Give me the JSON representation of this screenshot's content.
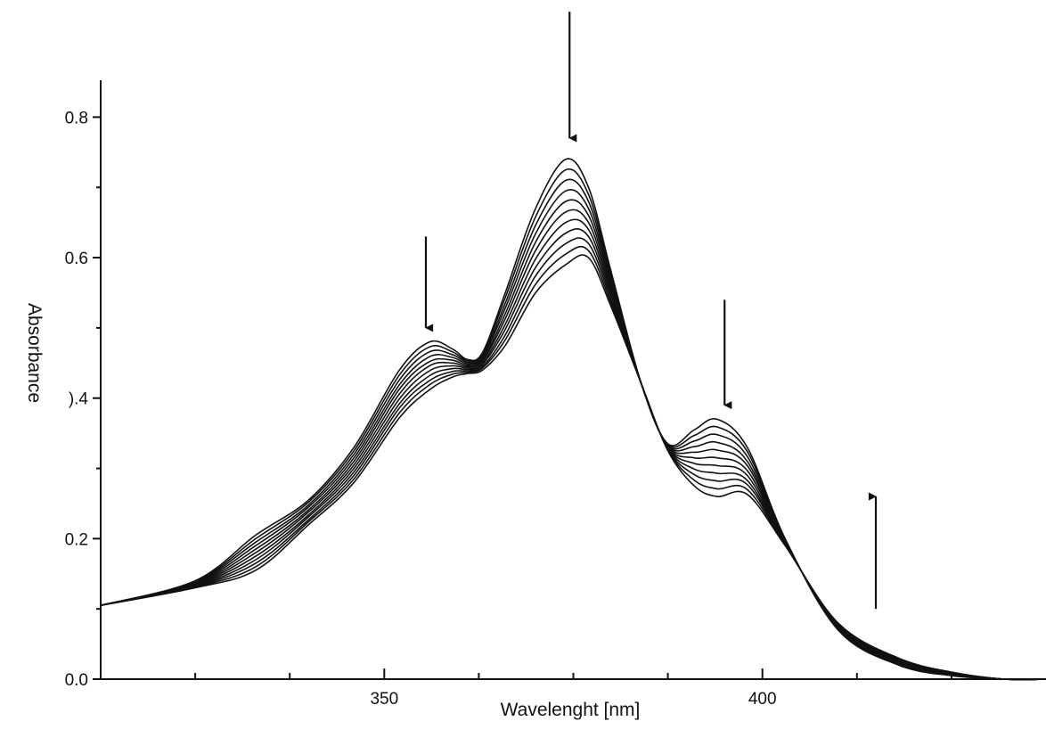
{
  "chart_data": {
    "type": "line",
    "title": "",
    "xlabel": "Wavelenght [nm]",
    "ylabel": "Absorbance",
    "xlim": [
      312.5,
      437.5
    ],
    "ylim": [
      0.0,
      0.85
    ],
    "grid": false,
    "legend": "none",
    "x_ticks": [
      {
        "value": 350,
        "label": "350"
      },
      {
        "value": 400,
        "label": "400"
      }
    ],
    "x_minor_ticks": [
      325,
      337.5,
      362.5,
      375,
      387.5,
      412.5,
      425
    ],
    "y_ticks": [
      {
        "value": 0.0,
        "label": "0.0"
      },
      {
        "value": 0.2,
        "label": "0.2"
      },
      {
        "value": 0.4,
        "label": ").4"
      },
      {
        "value": 0.6,
        "label": "0.6"
      },
      {
        "value": 0.8,
        "label": "0.8"
      }
    ],
    "y_minor_ticks": [
      0.1,
      0.3,
      0.5,
      0.7
    ],
    "x": [
      312.5,
      325,
      333,
      340,
      346,
      352,
      356,
      359,
      361,
      363,
      366,
      370,
      374,
      377,
      380,
      384,
      387.5,
      391,
      394,
      398,
      403,
      410,
      418,
      425,
      432,
      437.5
    ],
    "series": [
      {
        "values": [
          0.105,
          0.14,
          0.205,
          0.255,
          0.33,
          0.44,
          0.48,
          0.47,
          0.455,
          0.465,
          0.55,
          0.67,
          0.74,
          0.7,
          0.58,
          0.42,
          0.335,
          0.355,
          0.37,
          0.33,
          0.2,
          0.07,
          0.02,
          0.005,
          0.0,
          0.0
        ]
      },
      {
        "values": [
          0.105,
          0.139,
          0.2,
          0.252,
          0.325,
          0.433,
          0.473,
          0.466,
          0.453,
          0.463,
          0.543,
          0.658,
          0.725,
          0.69,
          0.575,
          0.42,
          0.334,
          0.347,
          0.359,
          0.324,
          0.199,
          0.071,
          0.021,
          0.006,
          0.0,
          0.0
        ]
      },
      {
        "values": [
          0.105,
          0.138,
          0.195,
          0.248,
          0.32,
          0.426,
          0.466,
          0.462,
          0.451,
          0.46,
          0.535,
          0.646,
          0.71,
          0.68,
          0.57,
          0.42,
          0.333,
          0.339,
          0.348,
          0.317,
          0.198,
          0.072,
          0.022,
          0.006,
          0.0,
          0.0
        ]
      },
      {
        "values": [
          0.105,
          0.137,
          0.19,
          0.245,
          0.315,
          0.419,
          0.459,
          0.458,
          0.449,
          0.458,
          0.528,
          0.634,
          0.695,
          0.67,
          0.565,
          0.42,
          0.332,
          0.331,
          0.337,
          0.31,
          0.197,
          0.073,
          0.023,
          0.007,
          0.0,
          0.0
        ]
      },
      {
        "values": [
          0.105,
          0.136,
          0.185,
          0.241,
          0.31,
          0.413,
          0.452,
          0.454,
          0.447,
          0.455,
          0.52,
          0.622,
          0.68,
          0.66,
          0.56,
          0.42,
          0.331,
          0.323,
          0.326,
          0.304,
          0.196,
          0.074,
          0.024,
          0.007,
          0.0,
          0.0
        ]
      },
      {
        "values": [
          0.105,
          0.135,
          0.18,
          0.238,
          0.305,
          0.406,
          0.446,
          0.45,
          0.445,
          0.453,
          0.513,
          0.61,
          0.665,
          0.65,
          0.555,
          0.42,
          0.33,
          0.315,
          0.315,
          0.297,
          0.195,
          0.075,
          0.025,
          0.008,
          0.0,
          0.0
        ]
      },
      {
        "values": [
          0.105,
          0.134,
          0.175,
          0.234,
          0.3,
          0.399,
          0.439,
          0.446,
          0.443,
          0.45,
          0.505,
          0.598,
          0.65,
          0.64,
          0.55,
          0.42,
          0.329,
          0.307,
          0.304,
          0.29,
          0.194,
          0.076,
          0.026,
          0.008,
          0.0,
          0.0
        ]
      },
      {
        "values": [
          0.105,
          0.133,
          0.17,
          0.231,
          0.295,
          0.392,
          0.432,
          0.442,
          0.441,
          0.448,
          0.498,
          0.586,
          0.635,
          0.63,
          0.545,
          0.42,
          0.328,
          0.299,
          0.293,
          0.283,
          0.193,
          0.077,
          0.027,
          0.009,
          0.0,
          0.0
        ]
      },
      {
        "values": [
          0.105,
          0.132,
          0.165,
          0.227,
          0.29,
          0.386,
          0.425,
          0.438,
          0.439,
          0.445,
          0.49,
          0.574,
          0.62,
          0.62,
          0.54,
          0.42,
          0.327,
          0.291,
          0.282,
          0.277,
          0.192,
          0.078,
          0.028,
          0.009,
          0.0,
          0.0
        ]
      },
      {
        "values": [
          0.105,
          0.131,
          0.16,
          0.224,
          0.285,
          0.379,
          0.419,
          0.434,
          0.437,
          0.443,
          0.483,
          0.562,
          0.605,
          0.61,
          0.535,
          0.42,
          0.326,
          0.283,
          0.271,
          0.27,
          0.191,
          0.079,
          0.029,
          0.01,
          0.0,
          0.0
        ]
      },
      {
        "values": [
          0.105,
          0.13,
          0.155,
          0.22,
          0.28,
          0.372,
          0.412,
          0.43,
          0.435,
          0.44,
          0.475,
          0.55,
          0.59,
          0.6,
          0.53,
          0.42,
          0.325,
          0.275,
          0.26,
          0.263,
          0.19,
          0.08,
          0.03,
          0.01,
          0.0,
          0.0
        ]
      }
    ],
    "annotations": [
      {
        "type": "arrow",
        "direction": "down",
        "x": 355.5,
        "y_from": 0.63,
        "y_to": 0.5
      },
      {
        "type": "arrow",
        "direction": "down",
        "x": 374.5,
        "y_from": 0.95,
        "y_to": 0.77
      },
      {
        "type": "arrow",
        "direction": "down",
        "x": 395,
        "y_from": 0.54,
        "y_to": 0.39
      },
      {
        "type": "arrow",
        "direction": "up",
        "x": 415,
        "y_from": 0.1,
        "y_to": 0.26
      }
    ]
  }
}
